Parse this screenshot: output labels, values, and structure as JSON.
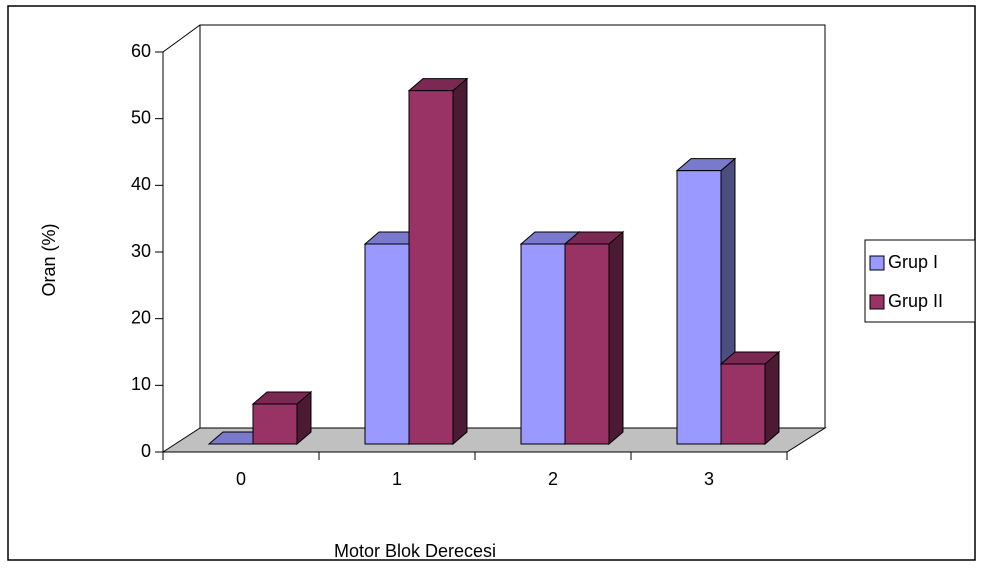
{
  "chart_data": {
    "type": "bar3d",
    "x_label": "Motor Blok Derecesi",
    "y_label": "Oran (%)",
    "categories": [
      "0",
      "1",
      "2",
      "3"
    ],
    "series": [
      {
        "name": "Grup I",
        "color": "#9999ff",
        "values": [
          0,
          30,
          30,
          41
        ]
      },
      {
        "name": "Grup II",
        "color": "#993366",
        "values": [
          6,
          53,
          30,
          12
        ]
      }
    ],
    "ylim": [
      0,
      60
    ],
    "yticks": [
      0,
      10,
      20,
      30,
      40,
      50,
      60
    ],
    "legend": "right"
  }
}
